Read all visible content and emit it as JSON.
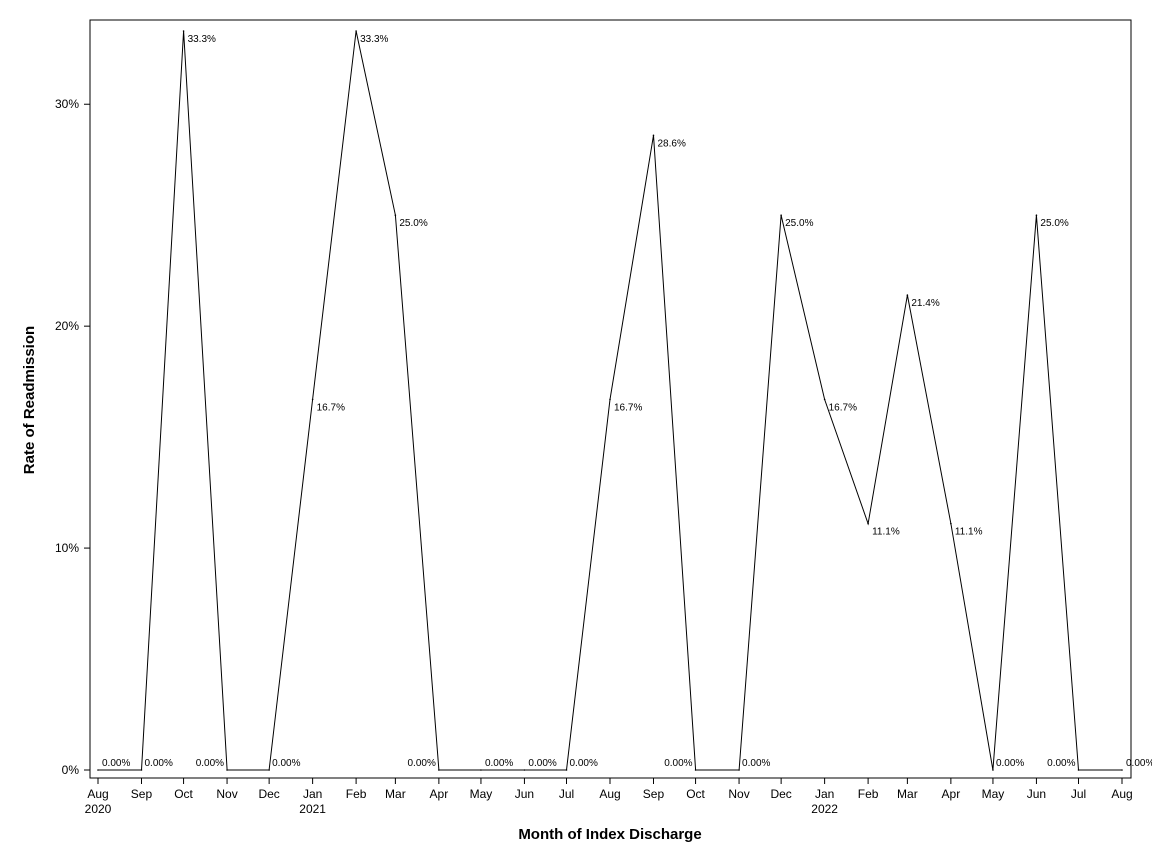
{
  "chart_data": {
    "type": "line",
    "title": "",
    "xlabel": "Month of Index Discharge",
    "ylabel": "Rate of Readmission",
    "ylim": [
      0,
      33.3
    ],
    "yticks": [
      {
        "value": 0,
        "label": "0%"
      },
      {
        "value": 10,
        "label": "10%"
      },
      {
        "value": 20,
        "label": "20%"
      },
      {
        "value": 30,
        "label": "30%"
      }
    ],
    "grid": false,
    "legend": "none",
    "colors": {
      "line": "#000000",
      "frame": "#000000"
    },
    "x": [
      "2020-08-01",
      "2020-09-01",
      "2020-10-01",
      "2020-11-01",
      "2020-12-01",
      "2021-01-01",
      "2021-02-01",
      "2021-03-01",
      "2021-04-01",
      "2021-05-01",
      "2021-06-01",
      "2021-07-01",
      "2021-08-01",
      "2021-09-01",
      "2021-10-01",
      "2021-11-01",
      "2021-12-01",
      "2022-01-01",
      "2022-02-01",
      "2022-03-01",
      "2022-04-01",
      "2022-05-01",
      "2022-06-01",
      "2022-07-01",
      "2022-08-01"
    ],
    "x_tick_labels": [
      "Aug",
      "Sep",
      "Oct",
      "Nov",
      "Dec",
      "Jan",
      "Feb",
      "Mar",
      "Apr",
      "May",
      "Jun",
      "Jul",
      "Aug",
      "Sep",
      "Oct",
      "Nov",
      "Dec",
      "Jan",
      "Feb",
      "Mar",
      "Apr",
      "May",
      "Jun",
      "Jul",
      "Aug"
    ],
    "x_year_labels": [
      {
        "index": 0,
        "label": "2020"
      },
      {
        "index": 5,
        "label": "2021"
      },
      {
        "index": 17,
        "label": "2022"
      }
    ],
    "series": [
      {
        "values": [
          0,
          0,
          33.3,
          0,
          0,
          16.7,
          33.3,
          25.0,
          0,
          0,
          0,
          0,
          16.7,
          28.6,
          0,
          0,
          25.0,
          16.7,
          11.1,
          21.4,
          11.1,
          0,
          25.0,
          0,
          0
        ],
        "data_labels": [
          "0.00%",
          "0.00%",
          "33.3%",
          "0.00%",
          "0.00%",
          "16.7%",
          "33.3%",
          "25.0%",
          "0.00%",
          "0.00%",
          "0.00%",
          "0.00%",
          "16.7%",
          "28.6%",
          "0.00%",
          "0.00%",
          "25.0%",
          "16.7%",
          "11.1%",
          "21.4%",
          "11.1%",
          "0.00%",
          "25.0%",
          "0.00%",
          "0.00%"
        ]
      }
    ]
  }
}
